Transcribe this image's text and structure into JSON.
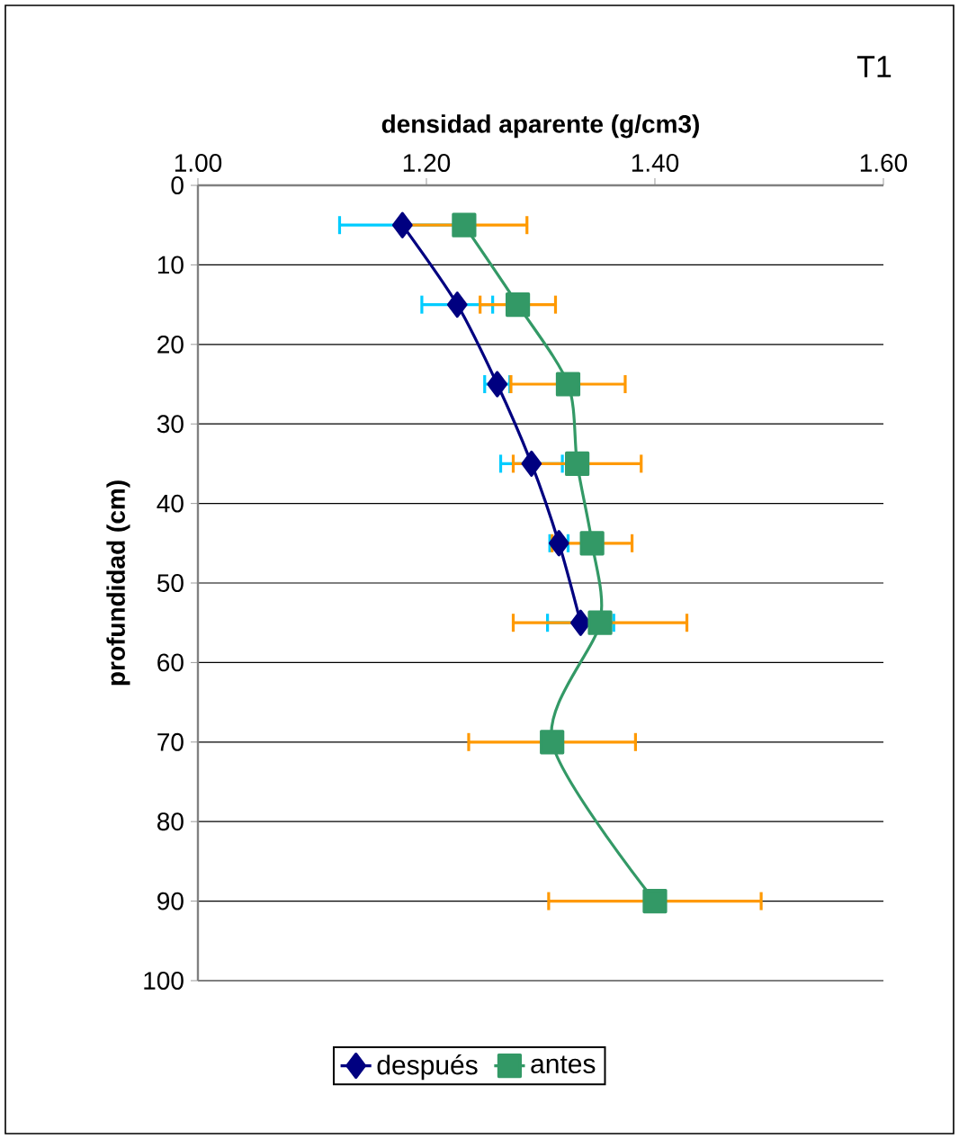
{
  "chart_data": {
    "type": "line",
    "title": "T1",
    "xlabel": "densidad aparente (g/cm3)",
    "ylabel": "profundidad (cm)",
    "xlim": [
      1.0,
      1.6
    ],
    "xticks": [
      {
        "value": 1.0,
        "label": "1.00"
      },
      {
        "value": 1.2,
        "label": "1.20"
      },
      {
        "value": 1.4,
        "label": "1.40"
      },
      {
        "value": 1.6,
        "label": "1.60"
      }
    ],
    "ylim": [
      100,
      0
    ],
    "yticks": [
      0,
      10,
      20,
      30,
      40,
      50,
      60,
      70,
      80,
      90,
      100
    ],
    "grid": "y",
    "legend": "bottom",
    "series": [
      {
        "name": "después",
        "color": "#000080",
        "marker": "diamond",
        "x": [
          1.179,
          1.227,
          1.262,
          1.292,
          1.316,
          1.335
        ],
        "values": [
          5,
          15,
          25,
          35,
          45,
          55
        ],
        "xerrors": [
          0.055,
          0.031,
          0.011,
          0.027,
          0.008,
          0.029
        ]
      },
      {
        "name": "antes",
        "color": "#339966",
        "marker": "square",
        "x": [
          1.233,
          1.28,
          1.324,
          1.332,
          1.345,
          1.352,
          1.31,
          1.4
        ],
        "values": [
          5,
          15,
          25,
          35,
          45,
          55,
          70,
          90
        ],
        "xerrors": [
          0.055,
          0.033,
          0.05,
          0.056,
          0.035,
          0.076,
          0.073,
          0.093
        ]
      }
    ]
  }
}
